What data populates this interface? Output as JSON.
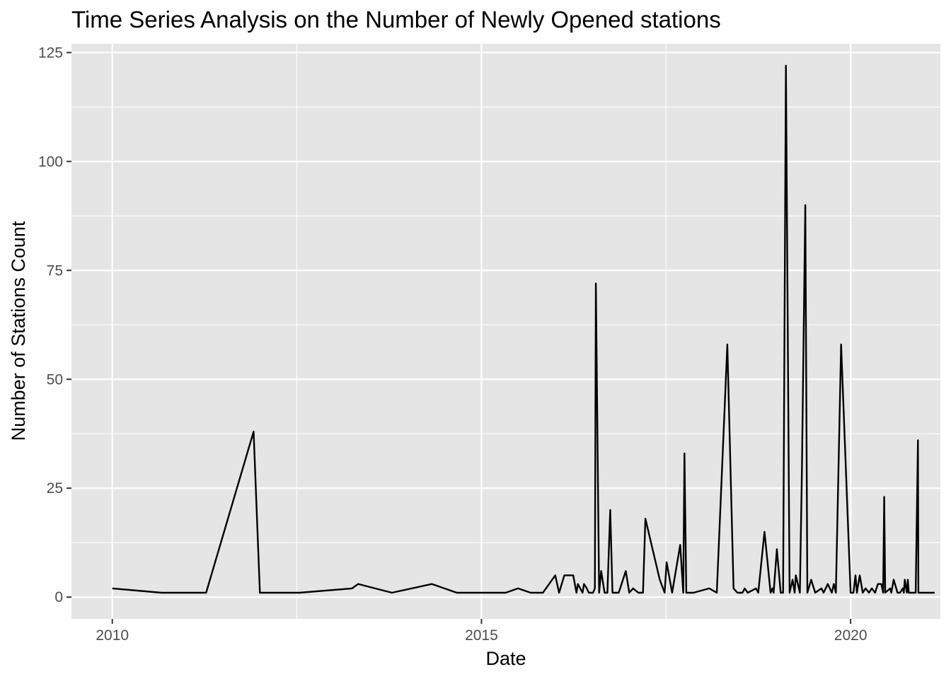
{
  "chart_data": {
    "type": "line",
    "title": "Time Series Analysis on the Number of Newly Opened stations",
    "xlabel": "Date",
    "ylabel": "Number of Stations Count",
    "x_axis_type": "date",
    "xlim": [
      "2009-06-13",
      "2021-03-20"
    ],
    "ylim": [
      -5,
      127
    ],
    "x_ticks": [
      {
        "date": "2010-01-01",
        "label": "2010"
      },
      {
        "date": "2015-01-01",
        "label": "2015"
      },
      {
        "date": "2020-01-01",
        "label": "2020"
      }
    ],
    "x_minor_ticks": [
      "2012-07-02",
      "2017-07-02"
    ],
    "y_ticks": [
      0,
      25,
      50,
      75,
      100,
      125
    ],
    "y_minor_ticks": [
      12.5,
      37.5,
      62.5,
      87.5,
      112.5
    ],
    "grid": true,
    "panel_background": "#e5e5e5",
    "grid_color": "#ffffff",
    "line_color": "#000000",
    "series": [
      {
        "x": [
          "2010-01-01",
          "2010-09-01",
          "2011-04-10",
          "2011-12-01",
          "2012-01-01",
          "2012-07-15",
          "2013-04-01",
          "2013-05-01",
          "2013-10-15",
          "2014-05-01",
          "2014-09-01",
          "2015-01-01",
          "2015-05-01",
          "2015-07-01",
          "2015-09-01",
          "2015-10-01",
          "2015-11-01",
          "2016-01-01",
          "2016-01-20",
          "2016-02-15",
          "2016-03-30",
          "2016-04-15",
          "2016-04-22",
          "2016-05-15",
          "2016-05-22",
          "2016-06-05",
          "2016-06-15",
          "2016-07-06",
          "2016-07-15",
          "2016-07-20",
          "2016-08-05",
          "2016-08-15",
          "2016-09-01",
          "2016-09-15",
          "2016-09-29",
          "2016-10-10",
          "2016-11-10",
          "2016-12-15",
          "2017-01-01",
          "2017-01-20",
          "2017-02-15",
          "2017-03-10",
          "2017-03-22",
          "2017-06-01",
          "2017-06-25",
          "2017-07-05",
          "2017-08-01",
          "2017-09-10",
          "2017-09-25",
          "2017-10-01",
          "2017-10-10",
          "2017-11-15",
          "2018-02-01",
          "2018-03-10",
          "2018-05-01",
          "2018-06-01",
          "2018-06-20",
          "2018-07-15",
          "2018-07-26",
          "2018-08-10",
          "2018-09-20",
          "2018-10-01",
          "2018-11-01",
          "2018-12-01",
          "2018-12-10",
          "2018-12-16",
          "2019-01-01",
          "2019-01-20",
          "2019-02-01",
          "2019-02-15",
          "2019-03-05",
          "2019-03-20",
          "2019-03-30",
          "2019-04-05",
          "2019-04-25",
          "2019-05-05",
          "2019-05-22",
          "2019-06-01",
          "2019-06-20",
          "2019-07-10",
          "2019-08-10",
          "2019-08-20",
          "2019-09-10",
          "2019-09-30",
          "2019-10-10",
          "2019-10-20",
          "2019-11-15",
          "2020-01-01",
          "2020-01-15",
          "2020-01-25",
          "2020-02-01",
          "2020-02-15",
          "2020-03-01",
          "2020-03-15",
          "2020-04-01",
          "2020-04-15",
          "2020-05-01",
          "2020-05-15",
          "2020-06-01",
          "2020-06-10",
          "2020-06-15",
          "2020-06-20",
          "2020-07-15",
          "2020-07-20",
          "2020-08-01",
          "2020-08-20",
          "2020-09-01",
          "2020-09-15",
          "2020-09-20",
          "2020-09-25",
          "2020-10-05",
          "2020-10-10",
          "2020-10-15",
          "2020-10-20",
          "2020-11-05",
          "2020-11-18",
          "2020-11-29",
          "2020-12-01",
          "2020-12-05",
          "2020-12-10",
          "2020-12-15",
          "2020-12-20",
          "2020-12-25",
          "2021-01-01",
          "2021-01-10",
          "2021-01-20",
          "2021-02-01",
          "2021-02-05",
          "2021-02-20"
        ],
        "y": [
          2,
          1,
          1,
          38,
          1,
          1,
          2,
          3,
          1,
          3,
          1,
          1,
          1,
          2,
          1,
          1,
          1,
          5,
          1,
          5,
          5,
          1,
          3,
          1,
          3,
          2,
          1,
          1,
          2,
          72,
          1,
          6,
          1,
          1,
          20,
          1,
          1,
          6,
          1,
          2,
          1,
          1,
          18,
          4,
          1,
          8,
          1,
          12,
          1,
          33,
          1,
          1,
          2,
          1,
          58,
          2,
          1,
          1,
          2,
          1,
          2,
          1,
          15,
          1,
          2,
          1,
          11,
          1,
          1,
          122,
          1,
          4,
          1,
          5,
          1,
          29,
          90,
          1,
          4,
          1,
          2,
          1,
          3,
          1,
          3,
          1,
          58,
          1,
          1,
          5,
          1,
          5,
          1,
          2,
          1,
          2,
          1,
          3,
          3,
          1,
          23,
          1,
          2,
          1,
          4,
          1,
          1,
          2,
          1,
          4,
          1,
          4,
          1,
          1,
          1,
          1,
          36,
          1,
          1,
          1,
          1,
          1,
          1,
          1,
          1,
          1,
          1,
          1,
          1
        ]
      }
    ]
  }
}
